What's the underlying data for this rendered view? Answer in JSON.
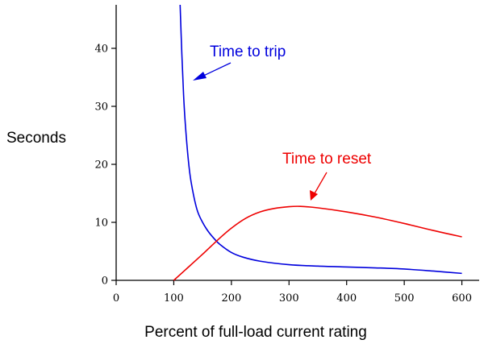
{
  "chart_data": {
    "type": "line",
    "title": "",
    "xlabel": "Percent of full-load current rating",
    "ylabel": "Seconds",
    "xlim": [
      0,
      630
    ],
    "ylim": [
      0,
      47.5
    ],
    "x_ticks": [
      "0",
      "100",
      "200",
      "300",
      "400",
      "500",
      "600"
    ],
    "y_ticks": [
      "0",
      "10",
      "20",
      "30",
      "40"
    ],
    "grid": false,
    "legend": "none",
    "series": [
      {
        "name": "Time to trip",
        "color": "#0000dd",
        "points": [
          [
            111,
            47.5
          ],
          [
            114,
            39
          ],
          [
            117,
            32
          ],
          [
            120,
            27
          ],
          [
            125,
            21
          ],
          [
            130,
            17
          ],
          [
            140,
            12.3
          ],
          [
            150,
            10
          ],
          [
            160,
            8.4
          ],
          [
            170,
            7.2
          ],
          [
            180,
            6.2
          ],
          [
            200,
            4.8
          ],
          [
            220,
            4.0
          ],
          [
            250,
            3.3
          ],
          [
            300,
            2.7
          ],
          [
            350,
            2.45
          ],
          [
            400,
            2.3
          ],
          [
            450,
            2.15
          ],
          [
            500,
            1.95
          ],
          [
            550,
            1.6
          ],
          [
            600,
            1.2
          ]
        ]
      },
      {
        "name": "Time to reset",
        "color": "#ee0000",
        "points": [
          [
            100,
            0
          ],
          [
            120,
            1.8
          ],
          [
            150,
            4.5
          ],
          [
            180,
            7.3
          ],
          [
            200,
            9.0
          ],
          [
            225,
            10.7
          ],
          [
            250,
            11.8
          ],
          [
            275,
            12.4
          ],
          [
            300,
            12.7
          ],
          [
            320,
            12.75
          ],
          [
            350,
            12.5
          ],
          [
            400,
            11.8
          ],
          [
            450,
            10.9
          ],
          [
            500,
            9.8
          ],
          [
            550,
            8.6
          ],
          [
            600,
            7.5
          ]
        ]
      }
    ],
    "annotations": [
      {
        "text": "Time to trip",
        "color": "#0000dd"
      },
      {
        "text": "Time to reset",
        "color": "#ee0000"
      }
    ]
  }
}
